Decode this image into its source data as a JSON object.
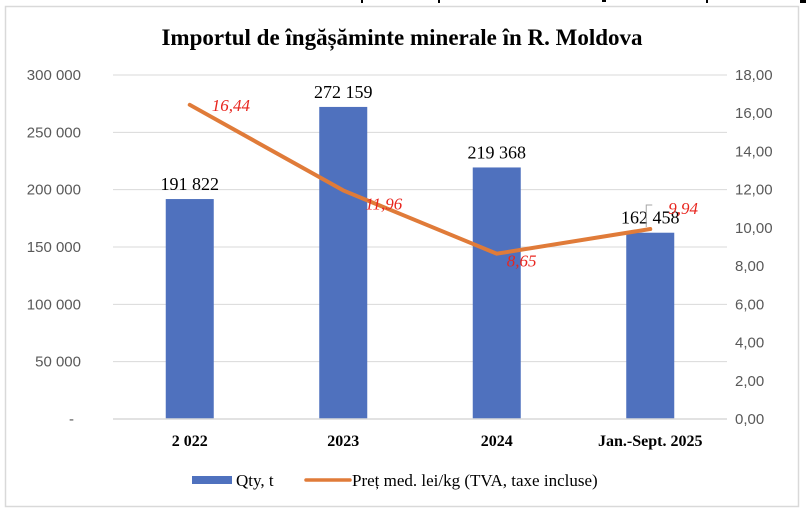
{
  "chart_data": {
    "type": "bar",
    "title": "Importul de îngășăminte minerale în R. Moldova",
    "categories": [
      "2 022",
      "2023",
      "2024",
      "Jan.-Sept. 2025"
    ],
    "series": [
      {
        "name": "Qty, t",
        "type": "bar",
        "axis": "left",
        "color": "#4f71be",
        "values": [
          191822,
          272159,
          219368,
          162458
        ],
        "labels": [
          "191 822",
          "272 159",
          "219 368",
          "162 458"
        ]
      },
      {
        "name": "Preț med. lei/kg (TVA, taxe incluse)",
        "type": "line",
        "axis": "right",
        "color": "#e07b39",
        "label_color": "#e8261f",
        "values": [
          16.44,
          11.96,
          8.65,
          9.94
        ],
        "labels": [
          "16,44",
          "11,96",
          "8,65",
          "9,94"
        ]
      }
    ],
    "y_left": {
      "ylim": [
        0,
        300000
      ],
      "ticks": [
        0,
        50000,
        100000,
        150000,
        200000,
        250000,
        300000
      ],
      "tick_labels": [
        "-",
        "50 000",
        "100 000",
        "150 000",
        "200 000",
        "250 000",
        "300 000"
      ]
    },
    "y_right": {
      "ylim": [
        0,
        18
      ],
      "ticks": [
        0,
        2,
        4,
        6,
        8,
        10,
        12,
        14,
        16,
        18
      ],
      "tick_labels": [
        "0,00",
        "2,00",
        "4,00",
        "6,00",
        "8,00",
        "10,00",
        "12,00",
        "14,00",
        "16,00",
        "18,00"
      ]
    },
    "xlabel": "",
    "ylabel": "",
    "grid": true,
    "legend": "bottom"
  }
}
